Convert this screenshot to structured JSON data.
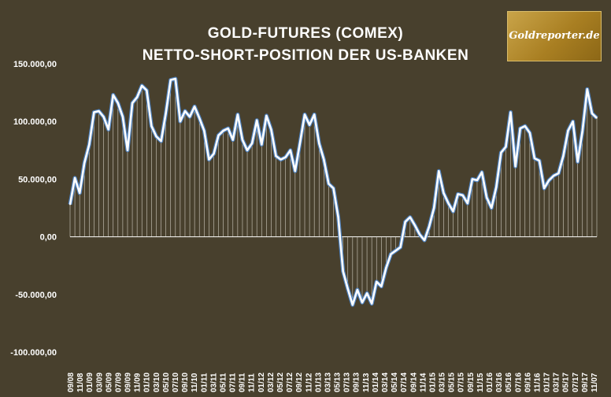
{
  "chart_data": {
    "type": "line",
    "title": "GOLD-FUTURES (COMEX)",
    "subtitle": "NETTO-SHORT-POSITION DER US-BANKEN",
    "yticks": [
      "150.000,00",
      "100.000,00",
      "50.000,00",
      "0,00",
      "-50.000,00",
      "-100.000,00"
    ],
    "ylim": [
      -100000,
      150000
    ],
    "xticks": [
      "09/08",
      "11/08",
      "01/09",
      "03/09",
      "05/09",
      "07/09",
      "09/09",
      "11/09",
      "01/10",
      "03/10",
      "05/10",
      "07/10",
      "09/10",
      "11/10",
      "01/11",
      "03/11",
      "05/11",
      "07/11",
      "09/11",
      "11/11",
      "01/12",
      "03/12",
      "05/12",
      "07/12",
      "09/12",
      "11/12",
      "01/13",
      "03/13",
      "05/13",
      "07/13",
      "09/13",
      "11/13",
      "01/14",
      "03/14",
      "05/14",
      "07/14",
      "09/14",
      "11/14",
      "01/15",
      "03/15",
      "05/15",
      "07/15",
      "09/15",
      "11/15",
      "01/16",
      "03/16",
      "05/16",
      "07/16",
      "09/16",
      "11/16",
      "01/17",
      "03/17",
      "05/17",
      "07/17",
      "09/17",
      "11/07"
    ],
    "values": [
      28000,
      51000,
      38000,
      64000,
      80000,
      108000,
      109000,
      104000,
      93000,
      123000,
      116000,
      104000,
      75000,
      116000,
      121000,
      131000,
      127000,
      96000,
      87000,
      83000,
      107000,
      136000,
      137000,
      100000,
      109000,
      104000,
      113000,
      103000,
      92000,
      67000,
      72000,
      88000,
      92000,
      94000,
      84000,
      106000,
      84000,
      75000,
      81000,
      101000,
      80000,
      105000,
      93000,
      70000,
      67000,
      69000,
      75000,
      57000,
      81000,
      106000,
      97000,
      106000,
      81000,
      67000,
      46000,
      42000,
      17000,
      -30000,
      -45000,
      -59000,
      -46000,
      -57000,
      -49000,
      -58000,
      -39000,
      -43000,
      -27000,
      -15000,
      -12000,
      -9000,
      13000,
      17000,
      10000,
      2000,
      -3000,
      9000,
      25000,
      57000,
      38000,
      29000,
      22000,
      37000,
      36000,
      29000,
      50000,
      49000,
      56000,
      34000,
      25000,
      43000,
      73000,
      78000,
      108000,
      61000,
      94000,
      96000,
      90000,
      68000,
      66000,
      42000,
      49000,
      53000,
      55000,
      70000,
      92000,
      100000,
      65000,
      92000,
      128000,
      107000,
      103000
    ],
    "line_color": "#ffffff",
    "line_edge_color": "#4f81bd",
    "background": "#48402d"
  },
  "logo": {
    "text": "Goldreporter.de"
  }
}
